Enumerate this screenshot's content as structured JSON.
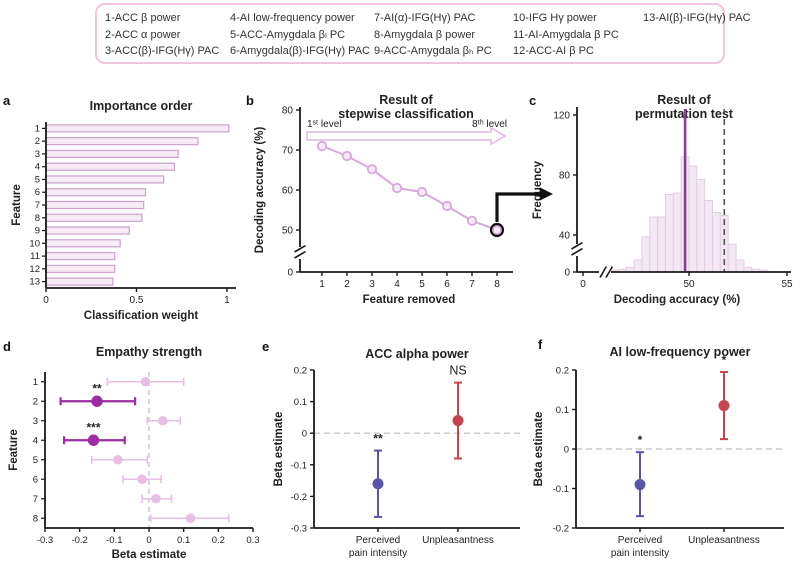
{
  "figure": {
    "panel_letters": [
      "a",
      "b",
      "c",
      "d",
      "e",
      "f"
    ],
    "legend_box": {
      "columns": [
        [
          "1-ACC β power",
          "2-ACC α power",
          "3-ACC(β)-IFG(Hγ) PAC"
        ],
        [
          "4-AI low-frequency power",
          "5-ACC-Amygdala βₗ PC",
          "6-Amygdala(β)-IFG(Hγ) PAC"
        ],
        [
          "7-AI(α)-IFG(Hγ) PAC",
          "8-Amygdala β power",
          "9-ACC-Amygdala βₕ PC"
        ],
        [
          "10-IFG Hγ power",
          "11-AI-Amygdala β PC",
          "12-ACC-AI β PC"
        ],
        [
          "13-AI(β)-IFG(Hγ) PAC"
        ]
      ]
    }
  },
  "colors": {
    "bar_fill": "#f7ecf6",
    "bar_stroke": "#c9a2cb",
    "line_series": "#d8a8dc",
    "marker_fill": "#f6eaf6",
    "hist_fill": "#f3e8f3",
    "hist_stroke": "#e0cfe1",
    "observed_line": "#8e3a9b",
    "threshold_line": "#555555",
    "light_point": "#e7bfe4",
    "dark_point": "#9c2ca1",
    "blue_point": "#5b55a8",
    "red_point": "#c4454f",
    "legend_border": "#efc4dc",
    "axis": "#1a1a1a",
    "zero_dash": "#c8c8c8",
    "arrow_outline": "#dcb8e0",
    "connector": "#111111"
  },
  "chart_data": [
    {
      "panel": "a",
      "type": "bar",
      "orientation": "horizontal",
      "title": "Importance order",
      "xlabel": "Classification weight",
      "ylabel": "Feature",
      "categories": [
        "1",
        "2",
        "3",
        "4",
        "5",
        "6",
        "7",
        "8",
        "9",
        "10",
        "11",
        "12",
        "13"
      ],
      "values": [
        1.01,
        0.84,
        0.73,
        0.71,
        0.65,
        0.55,
        0.54,
        0.53,
        0.46,
        0.41,
        0.38,
        0.38,
        0.37
      ],
      "xlim": [
        0,
        1.05
      ],
      "xticks": [
        0,
        0.5,
        1
      ]
    },
    {
      "panel": "b",
      "type": "line",
      "title_lines": [
        "Result of",
        "stepwise classification"
      ],
      "xlabel": "Feature removed",
      "ylabel": "Decoding accuracy (%)",
      "x": [
        1,
        2,
        3,
        4,
        5,
        6,
        7,
        8
      ],
      "y": [
        71,
        68.5,
        65.2,
        60.5,
        59.5,
        56,
        52.3,
        50
      ],
      "ylim_upper": [
        45,
        80
      ],
      "yticks": [
        0,
        50,
        60,
        70,
        80
      ],
      "axis_break_y": true,
      "arrow_labels": {
        "left": "1ˢᵗ level",
        "right": "8ᵗʰ level"
      },
      "highlight_last_point": true
    },
    {
      "panel": "c",
      "type": "histogram",
      "title_lines": [
        "Result of",
        "permutation test"
      ],
      "xlabel": "Decoding accuracy (%)",
      "ylabel": "Frequency",
      "bin_start": 46.0,
      "bin_width": 0.4,
      "counts": [
        2,
        3,
        5,
        13,
        38,
        52,
        52,
        67,
        68,
        92,
        86,
        77,
        63,
        55,
        53,
        30,
        13,
        5,
        3,
        2
      ],
      "observed_line_x": 49.8,
      "threshold_line_x": 51.8,
      "xticks": [
        0,
        50,
        55
      ],
      "yticks": [
        0,
        40,
        80,
        120
      ],
      "axis_breaks": [
        "x",
        "y"
      ]
    },
    {
      "panel": "d",
      "type": "point-errorbar-horizontal",
      "title": "Empathy strength",
      "xlabel": "Beta estimate",
      "ylabel": "Feature",
      "xlim": [
        -0.3,
        0.3
      ],
      "xticks": [
        -0.3,
        -0.2,
        -0.1,
        0,
        0.1,
        0.2,
        0.3
      ],
      "points": [
        {
          "feature": "1",
          "beta": -0.01,
          "ci": [
            -0.12,
            0.1
          ],
          "significance": "",
          "emphasis": "light"
        },
        {
          "feature": "2",
          "beta": -0.15,
          "ci": [
            -0.255,
            -0.04
          ],
          "significance": "**",
          "emphasis": "dark"
        },
        {
          "feature": "3",
          "beta": 0.04,
          "ci": [
            -0.005,
            0.09
          ],
          "significance": "",
          "emphasis": "light"
        },
        {
          "feature": "4",
          "beta": -0.16,
          "ci": [
            -0.245,
            -0.07
          ],
          "significance": "***",
          "emphasis": "dark"
        },
        {
          "feature": "5",
          "beta": -0.09,
          "ci": [
            -0.165,
            -0.005
          ],
          "significance": "",
          "emphasis": "light"
        },
        {
          "feature": "6",
          "beta": -0.02,
          "ci": [
            -0.075,
            0.035
          ],
          "significance": "",
          "emphasis": "light"
        },
        {
          "feature": "7",
          "beta": 0.02,
          "ci": [
            -0.02,
            0.065
          ],
          "significance": "",
          "emphasis": "light"
        },
        {
          "feature": "8",
          "beta": 0.12,
          "ci": [
            0.005,
            0.23
          ],
          "significance": "",
          "emphasis": "light"
        }
      ]
    },
    {
      "panel": "e",
      "type": "point-errorbar-vertical",
      "title": "ACC alpha power",
      "ylabel": "Beta estimate",
      "ylim": [
        -0.3,
        0.2
      ],
      "yticks": [
        -0.3,
        -0.2,
        -0.1,
        0,
        0.1,
        0.2
      ],
      "points": [
        {
          "label_lines": [
            "Perceived",
            "pain intensity"
          ],
          "beta": -0.16,
          "ci": [
            -0.265,
            -0.055
          ],
          "significance": "**",
          "color": "blue"
        },
        {
          "label_lines": [
            "Unpleasantness"
          ],
          "beta": 0.04,
          "ci": [
            -0.08,
            0.16
          ],
          "significance": "NS",
          "color": "red"
        }
      ]
    },
    {
      "panel": "f",
      "type": "point-errorbar-vertical",
      "title": "AI low-frequency power",
      "ylabel": "Beta estimate",
      "ylim": [
        -0.2,
        0.2
      ],
      "yticks": [
        -0.2,
        -0.1,
        0,
        0.1,
        0.2
      ],
      "points": [
        {
          "label_lines": [
            "Perceived",
            "pain intensity"
          ],
          "beta": -0.09,
          "ci": [
            -0.17,
            -0.008
          ],
          "significance": "*",
          "color": "blue"
        },
        {
          "label_lines": [
            "Unpleasantness"
          ],
          "beta": 0.11,
          "ci": [
            0.025,
            0.195
          ],
          "significance": "*",
          "color": "red"
        }
      ]
    }
  ]
}
